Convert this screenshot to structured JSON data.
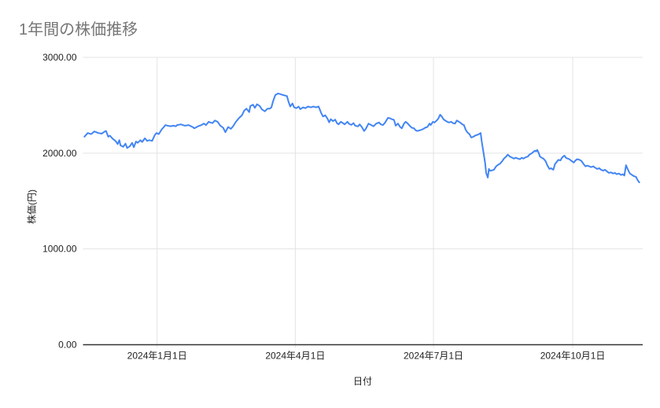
{
  "chart_data": {
    "type": "line",
    "title": "1年間の株価推移",
    "xlabel": "日付",
    "ylabel": "株価(円)",
    "grid": true,
    "legend": false,
    "ylim": [
      0,
      3000
    ],
    "y_ticks": [
      {
        "value": 0,
        "label": "0.00"
      },
      {
        "value": 1000,
        "label": "1000.00"
      },
      {
        "value": 2000,
        "label": "2000.00"
      },
      {
        "value": 3000,
        "label": "3000.00"
      }
    ],
    "x_ticks": [
      {
        "f": 0.131,
        "label": "2024年1月1日"
      },
      {
        "f": 0.38,
        "label": "2024年4月1日"
      },
      {
        "f": 0.629,
        "label": "2024年7月1日"
      },
      {
        "f": 0.88,
        "label": "2024年10月1日"
      }
    ],
    "colors": {
      "line": "#4285f4",
      "grid": "#e3e3e3",
      "axis": "#333333",
      "tick_text": "#1f1f1f",
      "title_text": "#757575"
    },
    "series": [
      {
        "y_unit": "JPY",
        "points": [
          [
            0.0,
            2172
          ],
          [
            0.006,
            2210
          ],
          [
            0.012,
            2199
          ],
          [
            0.018,
            2227
          ],
          [
            0.025,
            2210
          ],
          [
            0.031,
            2204
          ],
          [
            0.037,
            2227
          ],
          [
            0.039,
            2232
          ],
          [
            0.043,
            2172
          ],
          [
            0.046,
            2183
          ],
          [
            0.051,
            2150
          ],
          [
            0.056,
            2128
          ],
          [
            0.06,
            2095
          ],
          [
            0.063,
            2136
          ],
          [
            0.065,
            2081
          ],
          [
            0.07,
            2067
          ],
          [
            0.074,
            2100
          ],
          [
            0.077,
            2054
          ],
          [
            0.082,
            2073
          ],
          [
            0.086,
            2108
          ],
          [
            0.089,
            2062
          ],
          [
            0.093,
            2122
          ],
          [
            0.096,
            2108
          ],
          [
            0.101,
            2136
          ],
          [
            0.104,
            2117
          ],
          [
            0.109,
            2155
          ],
          [
            0.113,
            2128
          ],
          [
            0.117,
            2136
          ],
          [
            0.122,
            2128
          ],
          [
            0.127,
            2191
          ],
          [
            0.13,
            2210
          ],
          [
            0.134,
            2199
          ],
          [
            0.139,
            2246
          ],
          [
            0.146,
            2293
          ],
          [
            0.15,
            2287
          ],
          [
            0.155,
            2281
          ],
          [
            0.16,
            2287
          ],
          [
            0.165,
            2281
          ],
          [
            0.167,
            2293
          ],
          [
            0.174,
            2301
          ],
          [
            0.181,
            2287
          ],
          [
            0.188,
            2293
          ],
          [
            0.195,
            2273
          ],
          [
            0.198,
            2260
          ],
          [
            0.205,
            2281
          ],
          [
            0.211,
            2293
          ],
          [
            0.215,
            2309
          ],
          [
            0.219,
            2293
          ],
          [
            0.224,
            2328
          ],
          [
            0.227,
            2320
          ],
          [
            0.231,
            2314
          ],
          [
            0.235,
            2341
          ],
          [
            0.24,
            2328
          ],
          [
            0.245,
            2287
          ],
          [
            0.25,
            2265
          ],
          [
            0.254,
            2219
          ],
          [
            0.259,
            2273
          ],
          [
            0.264,
            2254
          ],
          [
            0.268,
            2281
          ],
          [
            0.273,
            2328
          ],
          [
            0.279,
            2369
          ],
          [
            0.284,
            2396
          ],
          [
            0.288,
            2445
          ],
          [
            0.292,
            2465
          ],
          [
            0.297,
            2429
          ],
          [
            0.299,
            2492
          ],
          [
            0.304,
            2506
          ],
          [
            0.307,
            2473
          ],
          [
            0.311,
            2511
          ],
          [
            0.316,
            2492
          ],
          [
            0.32,
            2457
          ],
          [
            0.325,
            2437
          ],
          [
            0.33,
            2465
          ],
          [
            0.334,
            2465
          ],
          [
            0.337,
            2478
          ],
          [
            0.34,
            2541
          ],
          [
            0.344,
            2607
          ],
          [
            0.349,
            2623
          ],
          [
            0.354,
            2615
          ],
          [
            0.358,
            2607
          ],
          [
            0.362,
            2601
          ],
          [
            0.365,
            2596
          ],
          [
            0.368,
            2533
          ],
          [
            0.371,
            2487
          ],
          [
            0.375,
            2519
          ],
          [
            0.378,
            2478
          ],
          [
            0.382,
            2470
          ],
          [
            0.386,
            2487
          ],
          [
            0.389,
            2459
          ],
          [
            0.394,
            2478
          ],
          [
            0.398,
            2470
          ],
          [
            0.403,
            2487
          ],
          [
            0.408,
            2478
          ],
          [
            0.413,
            2487
          ],
          [
            0.417,
            2478
          ],
          [
            0.422,
            2487
          ],
          [
            0.427,
            2416
          ],
          [
            0.43,
            2383
          ],
          [
            0.434,
            2396
          ],
          [
            0.438,
            2361
          ],
          [
            0.441,
            2322
          ],
          [
            0.444,
            2355
          ],
          [
            0.448,
            2334
          ],
          [
            0.452,
            2350
          ],
          [
            0.455,
            2314
          ],
          [
            0.458,
            2301
          ],
          [
            0.462,
            2328
          ],
          [
            0.466,
            2314
          ],
          [
            0.469,
            2301
          ],
          [
            0.474,
            2328
          ],
          [
            0.477,
            2306
          ],
          [
            0.481,
            2295
          ],
          [
            0.485,
            2314
          ],
          [
            0.488,
            2287
          ],
          [
            0.493,
            2279
          ],
          [
            0.496,
            2301
          ],
          [
            0.5,
            2273
          ],
          [
            0.504,
            2232
          ],
          [
            0.507,
            2252
          ],
          [
            0.512,
            2309
          ],
          [
            0.517,
            2293
          ],
          [
            0.521,
            2281
          ],
          [
            0.526,
            2309
          ],
          [
            0.531,
            2320
          ],
          [
            0.534,
            2301
          ],
          [
            0.538,
            2293
          ],
          [
            0.542,
            2320
          ],
          [
            0.547,
            2369
          ],
          [
            0.551,
            2363
          ],
          [
            0.554,
            2355
          ],
          [
            0.558,
            2347
          ],
          [
            0.561,
            2287
          ],
          [
            0.565,
            2309
          ],
          [
            0.569,
            2273
          ],
          [
            0.572,
            2260
          ],
          [
            0.576,
            2309
          ],
          [
            0.579,
            2328
          ],
          [
            0.583,
            2309
          ],
          [
            0.586,
            2287
          ],
          [
            0.59,
            2265
          ],
          [
            0.594,
            2260
          ],
          [
            0.597,
            2238
          ],
          [
            0.6,
            2232
          ],
          [
            0.604,
            2238
          ],
          [
            0.608,
            2246
          ],
          [
            0.611,
            2254
          ],
          [
            0.614,
            2265
          ],
          [
            0.618,
            2273
          ],
          [
            0.622,
            2309
          ],
          [
            0.624,
            2293
          ],
          [
            0.628,
            2328
          ],
          [
            0.631,
            2320
          ],
          [
            0.635,
            2341
          ],
          [
            0.638,
            2363
          ],
          [
            0.641,
            2402
          ],
          [
            0.644,
            2383
          ],
          [
            0.647,
            2355
          ],
          [
            0.65,
            2341
          ],
          [
            0.654,
            2328
          ],
          [
            0.657,
            2320
          ],
          [
            0.661,
            2328
          ],
          [
            0.664,
            2314
          ],
          [
            0.668,
            2309
          ],
          [
            0.671,
            2341
          ],
          [
            0.675,
            2328
          ],
          [
            0.677,
            2320
          ],
          [
            0.681,
            2301
          ],
          [
            0.684,
            2293
          ],
          [
            0.687,
            2246
          ],
          [
            0.69,
            2219
          ],
          [
            0.694,
            2199
          ],
          [
            0.697,
            2164
          ],
          [
            0.701,
            2172
          ],
          [
            0.704,
            2183
          ],
          [
            0.708,
            2191
          ],
          [
            0.711,
            2199
          ],
          [
            0.714,
            2210
          ],
          [
            0.716,
            2122
          ],
          [
            0.719,
            2013
          ],
          [
            0.722,
            1903
          ],
          [
            0.724,
            1794
          ],
          [
            0.727,
            1745
          ],
          [
            0.729,
            1835
          ],
          [
            0.731,
            1816
          ],
          [
            0.735,
            1821
          ],
          [
            0.738,
            1827
          ],
          [
            0.742,
            1862
          ],
          [
            0.745,
            1876
          ],
          [
            0.749,
            1890
          ],
          [
            0.753,
            1917
          ],
          [
            0.756,
            1944
          ],
          [
            0.76,
            1964
          ],
          [
            0.763,
            1985
          ],
          [
            0.767,
            1964
          ],
          [
            0.771,
            1953
          ],
          [
            0.774,
            1944
          ],
          [
            0.777,
            1953
          ],
          [
            0.781,
            1944
          ],
          [
            0.785,
            1937
          ],
          [
            0.788,
            1953
          ],
          [
            0.791,
            1944
          ],
          [
            0.795,
            1957
          ],
          [
            0.799,
            1964
          ],
          [
            0.802,
            1985
          ],
          [
            0.806,
            1999
          ],
          [
            0.809,
            2013
          ],
          [
            0.812,
            2026
          ],
          [
            0.814,
            2018
          ],
          [
            0.816,
            2034
          ],
          [
            0.819,
            1999
          ],
          [
            0.821,
            1964
          ],
          [
            0.824,
            1953
          ],
          [
            0.827,
            1944
          ],
          [
            0.831,
            1917
          ],
          [
            0.834,
            1876
          ],
          [
            0.838,
            1835
          ],
          [
            0.841,
            1843
          ],
          [
            0.845,
            1827
          ],
          [
            0.848,
            1885
          ],
          [
            0.852,
            1915
          ],
          [
            0.854,
            1930
          ],
          [
            0.858,
            1925
          ],
          [
            0.861,
            1955
          ],
          [
            0.865,
            1975
          ],
          [
            0.868,
            1950
          ],
          [
            0.871,
            1944
          ],
          [
            0.874,
            1937
          ],
          [
            0.878,
            1917
          ],
          [
            0.882,
            1903
          ],
          [
            0.885,
            1925
          ],
          [
            0.888,
            1937
          ],
          [
            0.892,
            1931
          ],
          [
            0.896,
            1917
          ],
          [
            0.899,
            1890
          ],
          [
            0.903,
            1862
          ],
          [
            0.906,
            1870
          ],
          [
            0.91,
            1862
          ],
          [
            0.913,
            1854
          ],
          [
            0.917,
            1862
          ],
          [
            0.92,
            1849
          ],
          [
            0.924,
            1835
          ],
          [
            0.928,
            1843
          ],
          [
            0.931,
            1827
          ],
          [
            0.935,
            1817
          ],
          [
            0.938,
            1827
          ],
          [
            0.942,
            1808
          ],
          [
            0.945,
            1794
          ],
          [
            0.949,
            1799
          ],
          [
            0.953,
            1788
          ],
          [
            0.956,
            1794
          ],
          [
            0.959,
            1780
          ],
          [
            0.963,
            1788
          ],
          [
            0.967,
            1772
          ],
          [
            0.97,
            1780
          ],
          [
            0.973,
            1766
          ],
          [
            0.976,
            1875
          ],
          [
            0.98,
            1821
          ],
          [
            0.983,
            1788
          ],
          [
            0.987,
            1772
          ],
          [
            0.99,
            1761
          ],
          [
            0.994,
            1753
          ],
          [
            0.997,
            1718
          ],
          [
            1.0,
            1695
          ]
        ]
      }
    ]
  }
}
